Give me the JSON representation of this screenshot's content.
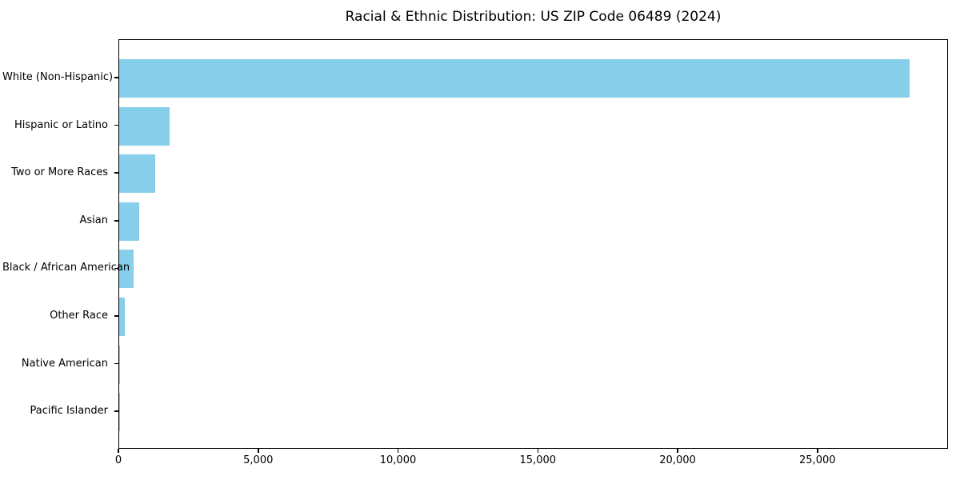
{
  "title": "Racial & Ethnic Distribution: US ZIP Code 06489 (2024)",
  "chart_data": {
    "type": "bar",
    "orientation": "horizontal",
    "title": "Racial & Ethnic Distribution: US ZIP Code 06489 (2024)",
    "xlabel": "",
    "ylabel": "",
    "categories": [
      "White (Non-Hispanic)",
      "Hispanic or Latino",
      "Two or More Races",
      "Asian",
      "Black / African American",
      "Other Race",
      "Native American",
      "Pacific Islander"
    ],
    "values": [
      28260,
      1815,
      1290,
      715,
      505,
      200,
      20,
      5
    ],
    "xlim": [
      0,
      29670
    ],
    "xticks": [
      0,
      5000,
      10000,
      15000,
      20000,
      25000
    ],
    "xtick_labels": [
      "0",
      "5,000",
      "10,000",
      "15,000",
      "20,000",
      "25,000"
    ],
    "bar_color": "#87ceeb",
    "axis_color": "#000000",
    "text_color": "#000000",
    "grid": false,
    "legend": null
  }
}
